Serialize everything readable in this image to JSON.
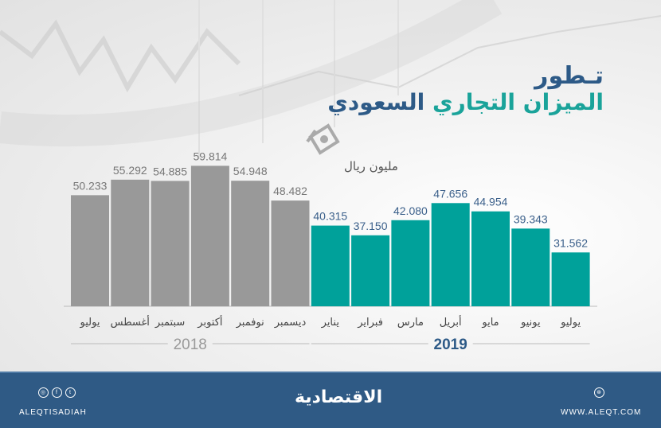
{
  "header": {
    "title_line1": "تـطور",
    "title_line2_part1": "الميزان التجاري",
    "title_line2_part2": "السعودي",
    "unit": "مليون ريال",
    "unit_icon": "money-bills-icon"
  },
  "chart_data": {
    "type": "bar",
    "title": "تـطور الميزان التجاري السعودي",
    "ylabel": "مليون ريال",
    "categories": [
      "يوليو",
      "أغسطس",
      "سبتمبر",
      "أكتوبر",
      "نوفمبر",
      "ديسمبر",
      "يناير",
      "فبراير",
      "مارس",
      "أبريل",
      "مايو",
      "يونيو",
      "يوليو"
    ],
    "values": [
      50.233,
      55.292,
      54.885,
      59.814,
      54.948,
      48.482,
      40.315,
      37.15,
      42.08,
      47.656,
      44.954,
      39.343,
      31.562
    ],
    "value_labels": [
      "50.233",
      "55.292",
      "54.885",
      "59.814",
      "54.948",
      "48.482",
      "40.315",
      "37.150",
      "42.080",
      "47.656",
      "44.954",
      "39.343",
      "31.562"
    ],
    "groups": [
      {
        "name": "2018",
        "count": 6,
        "color": "#999999",
        "label_color": "#777777"
      },
      {
        "name": "2019",
        "count": 7,
        "color": "#00a19a",
        "label_color": "#3a5f8a"
      }
    ],
    "ylim": [
      14,
      62
    ],
    "grid": false
  },
  "footer": {
    "social_handle": "ALEQTISADIAH",
    "logo": "الاقتصادية",
    "website": "WWW.ALEQT.COM",
    "social_icons": [
      "instagram-icon",
      "facebook-icon",
      "twitter-icon"
    ],
    "web_icon": "globe-icon",
    "color": "#2f5a85"
  }
}
